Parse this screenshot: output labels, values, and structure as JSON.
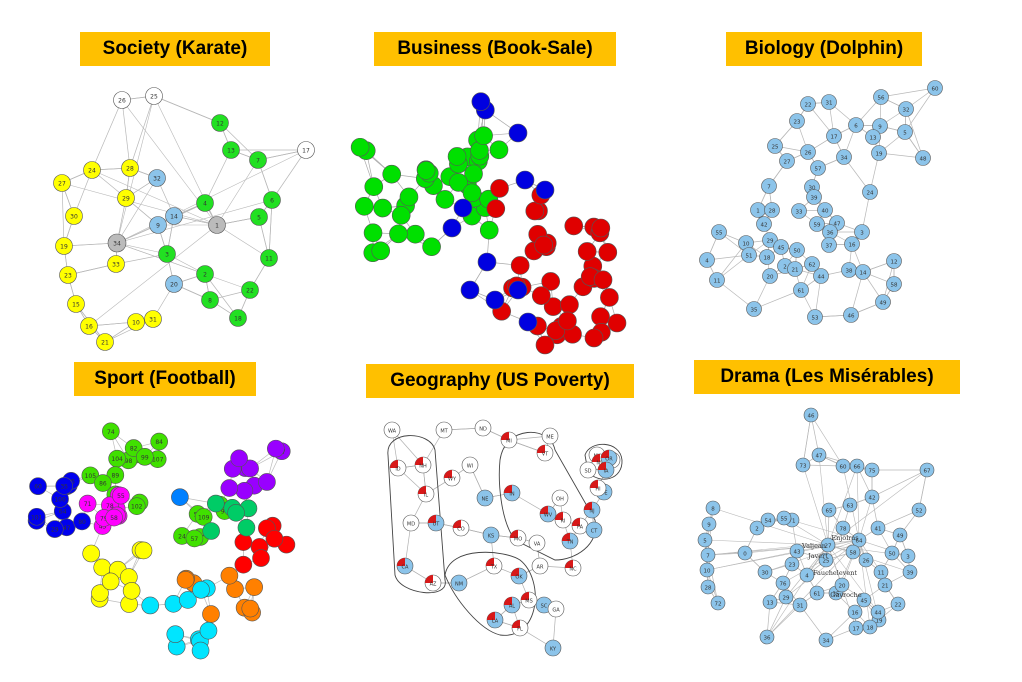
{
  "panels": [
    {
      "title": "Society (Karate)",
      "node_labels": [
        "26",
        "25",
        "12",
        "13",
        "17",
        "7",
        "24",
        "28",
        "32",
        "27",
        "29",
        "6",
        "14",
        "4",
        "1",
        "5",
        "30",
        "9",
        "34",
        "19",
        "33",
        "3",
        "11",
        "23",
        "20",
        "2",
        "22",
        "15",
        "8",
        "16",
        "31",
        "10",
        "18",
        "21"
      ]
    },
    {
      "title": "Business (Book-Sale)",
      "community_colors": [
        "#00e000",
        "#e00000",
        "#0000e0"
      ],
      "node_labels": []
    },
    {
      "title": "Biology (Dolphin)",
      "node_labels": [
        "60",
        "56",
        "32",
        "22",
        "31",
        "6",
        "9",
        "23",
        "17",
        "13",
        "5",
        "48",
        "25",
        "26",
        "27",
        "19",
        "34",
        "57",
        "7",
        "30",
        "24",
        "39",
        "1",
        "28",
        "33",
        "47",
        "42",
        "59",
        "40",
        "36",
        "55",
        "10",
        "29",
        "45",
        "50",
        "37",
        "16",
        "3",
        "51",
        "18",
        "2",
        "21",
        "44",
        "38",
        "4",
        "14",
        "12",
        "62",
        "11",
        "20",
        "61",
        "58",
        "35",
        "53",
        "46",
        "49"
      ]
    },
    {
      "title": "Sport (Football)",
      "community_colors": [
        "#0000ee",
        "#40e000",
        "#ff00ff",
        "#9900ff",
        "#ff0000",
        "#ff8000",
        "#00e5ff",
        "#ffff00",
        "#00cc66",
        "#0080ff"
      ],
      "node_labels": [
        "5",
        "84",
        "107",
        "98",
        "82",
        "99",
        "104",
        "74",
        "72",
        "102",
        "105",
        "89",
        "112",
        "66",
        "86",
        "81",
        "24",
        "37",
        "50",
        "96",
        "109",
        "57",
        "40",
        "64",
        "106",
        "60",
        "30",
        "15",
        "100",
        "47",
        "101",
        "80",
        "35",
        "29",
        "94",
        "38",
        "43",
        "42",
        "78",
        "55",
        "79",
        "71",
        "34",
        "58",
        "99",
        "77"
      ]
    },
    {
      "title": "Geography (US Poverty)",
      "node_labels": [
        "WA",
        "MT",
        "ND",
        "ME",
        "ID",
        "NH",
        "WI",
        "MI",
        "VT",
        "NY",
        "WY",
        "MA",
        "NE",
        "IL",
        "IN",
        "OH",
        "NJ",
        "PA",
        "CT",
        "RI",
        "DE",
        "MD",
        "UT",
        "CO",
        "KS",
        "MO",
        "WV",
        "VA",
        "CA",
        "AZ",
        "NM",
        "TX",
        "OK",
        "AR",
        "TN",
        "NC",
        "SC",
        "MS",
        "AL",
        "GA",
        "LA",
        "FL",
        "KY",
        "NV",
        "OR",
        "SD",
        "IA",
        "HI"
      ]
    },
    {
      "title": "Drama (Les Misérables)",
      "node_labels": [
        "46",
        "47",
        "73",
        "60",
        "66",
        "75",
        "67",
        "8",
        "9",
        "52",
        "42",
        "0",
        "43",
        "71",
        "65",
        "63",
        "2",
        "5",
        "7",
        "10",
        "41",
        "49",
        "54",
        "55",
        "64",
        "58",
        "78",
        "27",
        "23",
        "25",
        "26",
        "11",
        "50",
        "3",
        "39",
        "28",
        "30",
        "76",
        "4",
        "61",
        "35",
        "29",
        "13",
        "31",
        "16",
        "21",
        "22",
        "19",
        "17",
        "18",
        "36",
        "34",
        "45",
        "72",
        "44",
        "20"
      ],
      "featured_labels": [
        "Valjean",
        "Javert",
        "Fauchelevent",
        "Enjolras",
        "Gavroche"
      ]
    }
  ]
}
